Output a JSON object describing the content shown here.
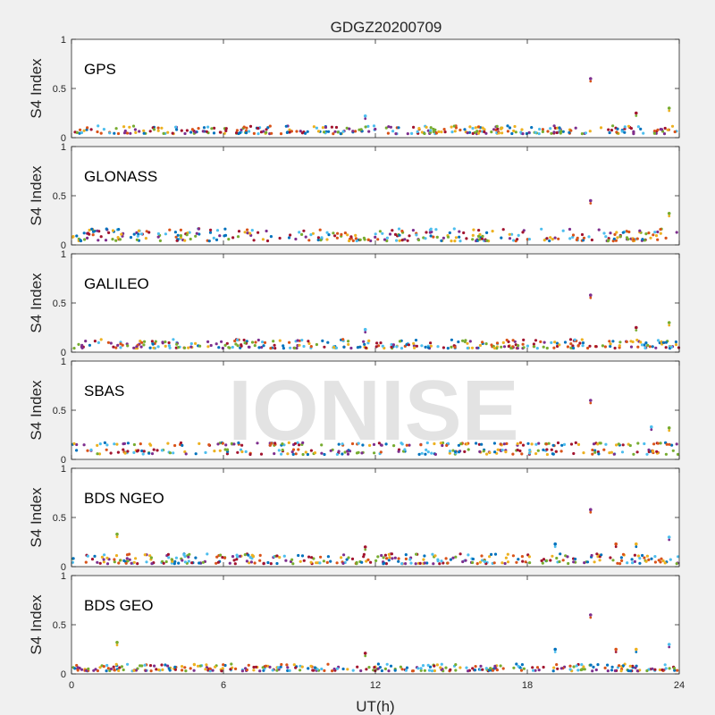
{
  "figure": {
    "title": "GDGZ20200709",
    "xlabel": "UT(h)",
    "watermark": "IONISE",
    "background": "#f0f0f0",
    "axes_background": "#ffffff"
  },
  "chart_data": [
    {
      "type": "scatter",
      "label": "GPS",
      "ylabel": "S4 Index",
      "xlim": [
        0,
        24
      ],
      "ylim": [
        0,
        1
      ],
      "xticks": [
        0,
        6,
        12,
        18,
        24
      ],
      "yticks": [
        0,
        0.5,
        1
      ],
      "grid": false,
      "baseline_range": [
        0.04,
        0.12
      ],
      "spikes": [
        {
          "x": 20.5,
          "y": 0.6
        },
        {
          "x": 23.6,
          "y": 0.3
        },
        {
          "x": 11.6,
          "y": 0.22
        },
        {
          "x": 22.3,
          "y": 0.25
        }
      ]
    },
    {
      "type": "scatter",
      "label": "GLONASS",
      "ylabel": "S4 Index",
      "xlim": [
        0,
        24
      ],
      "ylim": [
        0,
        1
      ],
      "xticks": [
        0,
        6,
        12,
        18,
        24
      ],
      "yticks": [
        0,
        0.5,
        1
      ],
      "grid": false,
      "baseline_range": [
        0.04,
        0.17
      ],
      "spikes": [
        {
          "x": 20.5,
          "y": 0.45
        },
        {
          "x": 23.6,
          "y": 0.32
        }
      ]
    },
    {
      "type": "scatter",
      "label": "GALILEO",
      "ylabel": "S4 Index",
      "xlim": [
        0,
        24
      ],
      "ylim": [
        0,
        1
      ],
      "xticks": [
        0,
        6,
        12,
        18,
        24
      ],
      "yticks": [
        0,
        0.5,
        1
      ],
      "grid": false,
      "baseline_range": [
        0.04,
        0.13
      ],
      "spikes": [
        {
          "x": 20.5,
          "y": 0.58
        },
        {
          "x": 23.6,
          "y": 0.3
        },
        {
          "x": 11.6,
          "y": 0.23
        },
        {
          "x": 22.3,
          "y": 0.25
        }
      ]
    },
    {
      "type": "scatter",
      "label": "SBAS",
      "ylabel": "S4 Index",
      "xlim": [
        0,
        24
      ],
      "ylim": [
        0,
        1
      ],
      "xticks": [
        0,
        6,
        12,
        18,
        24
      ],
      "yticks": [
        0,
        0.5,
        1
      ],
      "grid": false,
      "baseline_range": [
        0.05,
        0.17
      ],
      "spikes": [
        {
          "x": 20.5,
          "y": 0.6
        },
        {
          "x": 23.6,
          "y": 0.32
        },
        {
          "x": 22.9,
          "y": 0.33
        }
      ]
    },
    {
      "type": "scatter",
      "label": "BDS NGEO",
      "ylabel": "S4 Index",
      "xlim": [
        0,
        24
      ],
      "ylim": [
        0,
        1
      ],
      "xticks": [
        0,
        6,
        12,
        18,
        24
      ],
      "yticks": [
        0,
        0.5,
        1
      ],
      "grid": false,
      "baseline_range": [
        0.03,
        0.13
      ],
      "spikes": [
        {
          "x": 20.5,
          "y": 0.58
        },
        {
          "x": 1.8,
          "y": 0.33
        },
        {
          "x": 23.6,
          "y": 0.3
        },
        {
          "x": 11.6,
          "y": 0.2
        },
        {
          "x": 19.1,
          "y": 0.23
        },
        {
          "x": 21.5,
          "y": 0.23
        },
        {
          "x": 22.3,
          "y": 0.23
        }
      ]
    },
    {
      "type": "scatter",
      "label": "BDS GEO",
      "ylabel": "S4 Index",
      "xlim": [
        0,
        24
      ],
      "ylim": [
        0,
        1
      ],
      "xticks": [
        0,
        6,
        12,
        18,
        24
      ],
      "yticks": [
        0,
        0.5,
        1
      ],
      "grid": false,
      "baseline_range": [
        0.03,
        0.1
      ],
      "spikes": [
        {
          "x": 20.5,
          "y": 0.6
        },
        {
          "x": 1.8,
          "y": 0.32
        },
        {
          "x": 23.6,
          "y": 0.3
        },
        {
          "x": 11.6,
          "y": 0.21
        },
        {
          "x": 19.1,
          "y": 0.25
        },
        {
          "x": 21.5,
          "y": 0.25
        },
        {
          "x": 22.3,
          "y": 0.25
        }
      ]
    }
  ],
  "series_colors": [
    "#0072BD",
    "#D95319",
    "#EDB120",
    "#7E2F8E",
    "#77AC30",
    "#4DBEEE",
    "#A2142F"
  ]
}
